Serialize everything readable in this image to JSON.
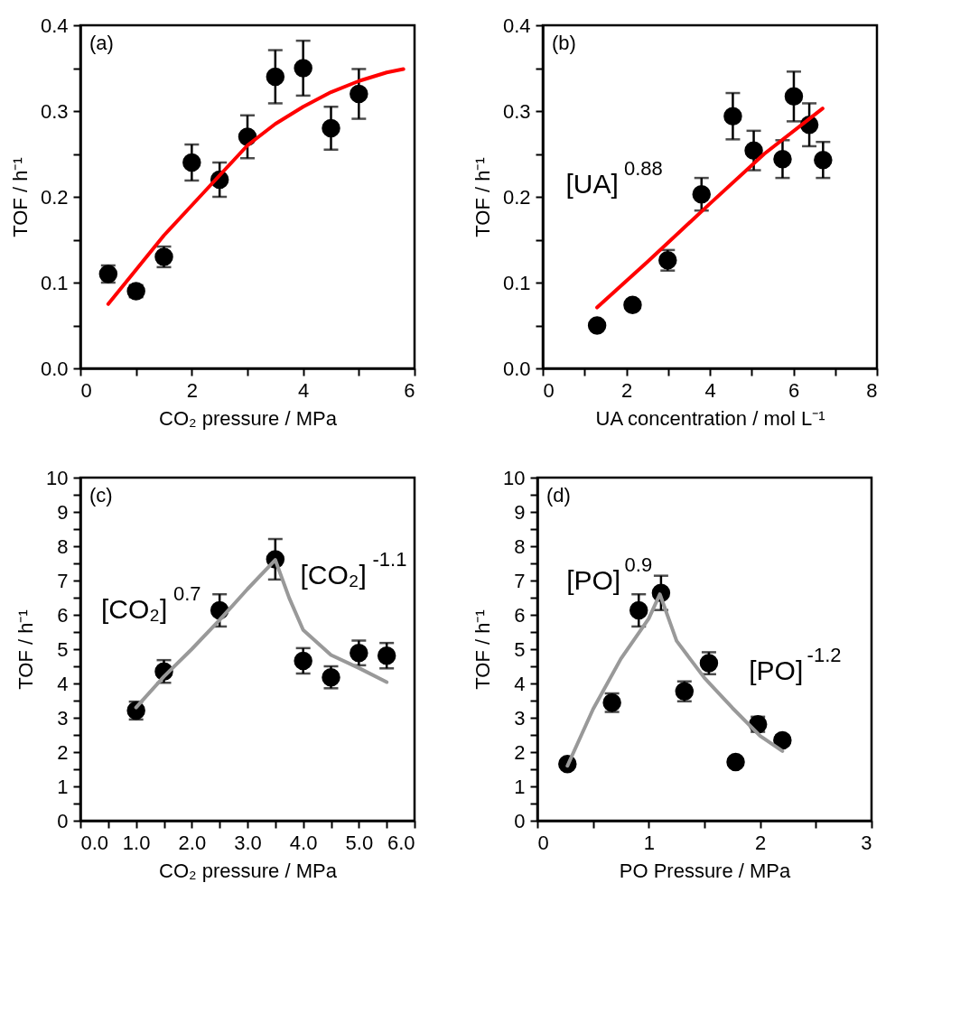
{
  "chart_data": [
    {
      "type": "scatter",
      "xlabel": "CO₂ pressure / MPa",
      "ylabel": "TOF / h⁻¹",
      "xlim": [
        0,
        6
      ],
      "ylim": [
        0,
        0.4
      ],
      "grid": false,
      "xticks": [
        0,
        {
          "value": 1,
          "label": null
        },
        2,
        {
          "value": 3,
          "label": null
        },
        4,
        {
          "value": 5,
          "label": null
        },
        6
      ],
      "yticks": [
        {
          "value": 0,
          "label": "0.0"
        },
        {
          "value": 0.05,
          "label": null
        },
        0.1,
        {
          "value": 0.15,
          "label": null
        },
        0.2,
        {
          "value": 0.25,
          "label": null
        },
        0.3,
        {
          "value": 0.35,
          "label": null
        },
        0.4
      ],
      "annotations": [
        "(a)"
      ],
      "series": [
        {
          "type": "scatter",
          "marker": "circle",
          "color": "#000000",
          "x": [
            0.5,
            1,
            1.5,
            2,
            2.5,
            3,
            3.5,
            4,
            4.5,
            5
          ],
          "values": [
            0.11,
            0.09,
            0.13,
            0.24,
            0.22,
            0.27,
            0.34,
            0.35,
            0.28,
            0.32
          ],
          "errors": [
            0.01,
            0.007,
            0.012,
            0.021,
            0.02,
            0.025,
            0.031,
            0.032,
            0.025,
            0.029
          ]
        },
        {
          "type": "line",
          "color": "#ff0000",
          "x": [
            0.5,
            1,
            1.5,
            2,
            2.5,
            3,
            3.5,
            4,
            4.5,
            5,
            5.5,
            5.8
          ],
          "values": [
            0.075,
            0.115,
            0.155,
            0.19,
            0.225,
            0.26,
            0.285,
            0.305,
            0.322,
            0.335,
            0.345,
            0.349
          ]
        }
      ]
    },
    {
      "type": "scatter",
      "xlabel": "UA concentration / mol L⁻¹",
      "ylabel": "TOF / h⁻¹",
      "xlim": [
        0,
        8
      ],
      "ylim": [
        0,
        0.4
      ],
      "grid": false,
      "xticks": [
        0,
        {
          "value": 1,
          "label": null
        },
        2,
        {
          "value": 3,
          "label": null
        },
        4,
        {
          "value": 5,
          "label": null
        },
        6,
        {
          "value": 7,
          "label": null
        },
        8
      ],
      "yticks": [
        {
          "value": 0,
          "label": "0.0"
        },
        {
          "value": 0.05,
          "label": null
        },
        0.1,
        {
          "value": 0.15,
          "label": null
        },
        0.2,
        {
          "value": 0.25,
          "label": null
        },
        0.3,
        {
          "value": 0.35,
          "label": null
        },
        0.4
      ],
      "annotations": [
        "(b)",
        "[UA]$^{0.88}$"
      ],
      "series": [
        {
          "type": "scatter",
          "marker": "circle",
          "color": "#000000",
          "x": [
            1.3,
            2.15,
            2.99,
            3.8,
            4.55,
            5.05,
            5.74,
            6.01,
            6.38,
            6.71
          ],
          "values": [
            0.05,
            0.074,
            0.126,
            0.203,
            0.294,
            0.254,
            0.244,
            0.317,
            0.284,
            0.243
          ],
          "errors": [
            null,
            null,
            0.012,
            0.019,
            0.027,
            0.023,
            0.022,
            0.029,
            0.025,
            0.021
          ]
        },
        {
          "type": "line",
          "color": "#ff0000",
          "x": [
            1.3,
            2.5,
            4,
            5.3,
            6.7
          ],
          "values": [
            0.071,
            0.124,
            0.192,
            0.25,
            0.303
          ]
        }
      ]
    },
    {
      "type": "scatter",
      "xlabel": "CO₂ pressure / MPa",
      "ylabel": "TOF / h⁻¹",
      "xlim": [
        0,
        6
      ],
      "ylim": [
        0,
        10
      ],
      "grid": false,
      "xticks": [
        {
          "value": 0,
          "label": "0.0"
        },
        {
          "value": 0.5,
          "label": null
        },
        {
          "value": 1,
          "label": "1.0"
        },
        {
          "value": 1.5,
          "label": null
        },
        {
          "value": 2,
          "label": "2.0"
        },
        {
          "value": 2.5,
          "label": null
        },
        {
          "value": 3,
          "label": "3.0"
        },
        {
          "value": 3.5,
          "label": null
        },
        {
          "value": 4,
          "label": "4.0"
        },
        {
          "value": 4.5,
          "label": null
        },
        {
          "value": 5,
          "label": "5.0"
        },
        {
          "value": 5.5,
          "label": null
        },
        {
          "value": 6,
          "label": "6.0"
        }
      ],
      "yticks": [
        0,
        {
          "value": 0.5,
          "label": null
        },
        1,
        {
          "value": 1.5,
          "label": null
        },
        2,
        {
          "value": 2.5,
          "label": null
        },
        3,
        {
          "value": 3.5,
          "label": null
        },
        4,
        {
          "value": 4.5,
          "label": null
        },
        5,
        {
          "value": 5.5,
          "label": null
        },
        6,
        {
          "value": 6.5,
          "label": null
        },
        7,
        {
          "value": 7.5,
          "label": null
        },
        8,
        {
          "value": 8.5,
          "label": null
        },
        9,
        {
          "value": 9.5,
          "label": null
        },
        10
      ],
      "annotations": [
        "(c)",
        "[CO₂]$^{0.7}$",
        "[CO₂]$^{-1.1}$"
      ],
      "series": [
        {
          "type": "scatter",
          "marker": "circle",
          "color": "#000000",
          "x": [
            1.0,
            1.5,
            2.5,
            3.5,
            4.0,
            4.5,
            5.0,
            5.5
          ],
          "values": [
            3.21,
            4.35,
            6.13,
            7.62,
            4.66,
            4.18,
            4.89,
            4.81
          ],
          "errors": [
            0.26,
            0.33,
            0.47,
            0.59,
            0.37,
            0.32,
            0.36,
            0.37
          ]
        },
        {
          "type": "line",
          "color": "#999999",
          "x": [
            1.0,
            1.5,
            2.0,
            2.5,
            3.0,
            3.5,
            3.75,
            4.0,
            4.5,
            5.0,
            5.5
          ],
          "values": [
            3.3,
            4.2,
            5.0,
            5.85,
            6.75,
            7.6,
            6.49,
            5.56,
            4.83,
            4.45,
            4.04
          ]
        }
      ]
    },
    {
      "type": "scatter",
      "xlabel": "PO Pressure / MPa",
      "ylabel": "TOF / h⁻¹",
      "xlim": [
        0,
        3
      ],
      "ylim": [
        0,
        10
      ],
      "grid": false,
      "xticks": [
        0,
        {
          "value": 0.5,
          "label": null
        },
        1,
        {
          "value": 1.5,
          "label": null
        },
        2,
        {
          "value": 2.5,
          "label": null
        },
        3
      ],
      "yticks": [
        0,
        {
          "value": 0.5,
          "label": null
        },
        1,
        {
          "value": 1.5,
          "label": null
        },
        2,
        {
          "value": 2.5,
          "label": null
        },
        3,
        {
          "value": 3.5,
          "label": null
        },
        4,
        {
          "value": 4.5,
          "label": null
        },
        5,
        {
          "value": 5.5,
          "label": null
        },
        6,
        {
          "value": 6.5,
          "label": null
        },
        7,
        {
          "value": 7.5,
          "label": null
        },
        8,
        {
          "value": 8.5,
          "label": null
        },
        9,
        {
          "value": 9.5,
          "label": null
        },
        10
      ],
      "annotations": [
        "(d)",
        "[PO]$^{0.9}$",
        "[PO]$^{-1.2}$"
      ],
      "series": [
        {
          "type": "scatter",
          "marker": "circle",
          "color": "#000000",
          "x": [
            0.27,
            0.67,
            0.91,
            1.11,
            1.32,
            1.54,
            1.78,
            1.98,
            2.2
          ],
          "values": [
            1.65,
            3.44,
            6.13,
            6.64,
            3.77,
            4.59,
            1.71,
            2.81,
            2.34
          ],
          "errors": [
            null,
            0.27,
            0.47,
            0.5,
            0.29,
            0.32,
            null,
            0.22,
            0.15
          ]
        },
        {
          "type": "line",
          "color": "#999999",
          "x": [
            0.27,
            0.5,
            0.75,
            1.0,
            1.1,
            1.25,
            1.5,
            1.75,
            2.0,
            2.2
          ],
          "values": [
            1.6,
            3.25,
            4.72,
            5.89,
            6.6,
            5.24,
            4.16,
            3.29,
            2.47,
            2.03
          ]
        }
      ]
    }
  ]
}
